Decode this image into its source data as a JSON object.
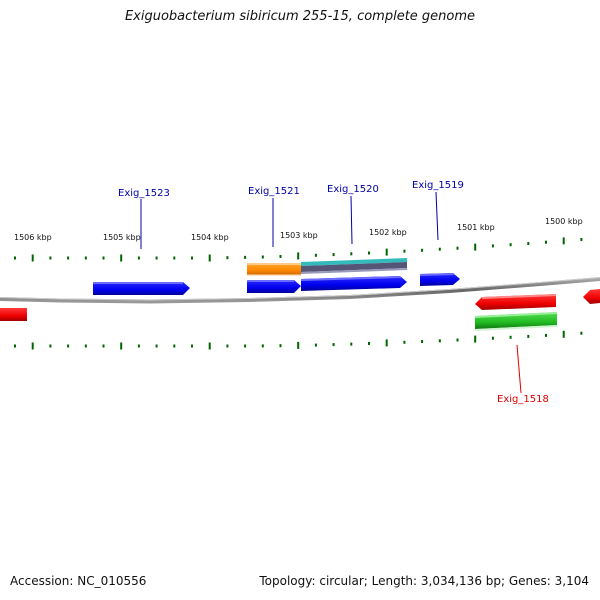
{
  "title": "Exiguobacterium sibiricum 255-15, complete genome",
  "footer": {
    "accession": "Accession: NC_010556",
    "summary": "Topology: circular; Length: 3,034,136 bp; Genes: 3,104"
  },
  "scale_labels": [
    "1506 kbp",
    "1505 kbp",
    "1504 kbp",
    "1503 kbp",
    "1502 kbp",
    "1501 kbp",
    "1500 kbp"
  ],
  "genes": [
    {
      "name": "Exig_1523",
      "color": "#0000aa"
    },
    {
      "name": "Exig_1521",
      "color": "#0000aa"
    },
    {
      "name": "Exig_1520",
      "color": "#0000aa"
    },
    {
      "name": "Exig_1519",
      "color": "#0000aa"
    },
    {
      "name": "Exig_1518",
      "color": "#dd0000"
    }
  ],
  "colors": {
    "forward_gene": "#0000ff",
    "reverse_gene": "#ff0000",
    "rrna_like": "#ff9900",
    "teal": "#33bbbb",
    "slate": "#555577",
    "green": "#33cc33",
    "backbone": "#777777",
    "ticks": "#006600"
  }
}
